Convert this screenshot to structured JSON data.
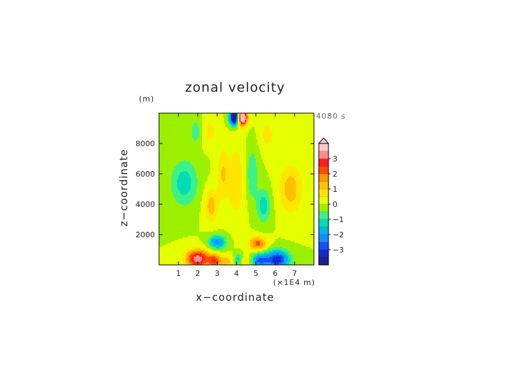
{
  "chart_data": {
    "type": "heatmap",
    "title": "zonal velocity",
    "xlabel": "x−coordinate",
    "ylabel": "z−coordinate",
    "x_unit": "(×1E4 m)",
    "y_unit": "(m)",
    "time_label": "4080 s",
    "xlim": [
      0,
      8
    ],
    "ylim": [
      0,
      10000
    ],
    "x_ticks": [
      "1",
      "2",
      "3",
      "4",
      "5",
      "6",
      "7"
    ],
    "y_ticks": [
      "2000",
      "4000",
      "6000",
      "8000"
    ],
    "colorbar": {
      "ticks": [
        "3",
        "2",
        "1",
        "0",
        "−1",
        "−2",
        "−3"
      ],
      "levels": [
        -3.5,
        -3,
        -2.5,
        -2,
        -1.5,
        -1,
        -0.5,
        0,
        0.5,
        1,
        1.5,
        2,
        2.5,
        3,
        3.5
      ],
      "colors": [
        "#1e1e8c",
        "#0f2dc8",
        "#1450ff",
        "#1e8cff",
        "#00b4f0",
        "#00dcb4",
        "#3cf08c",
        "#9bf000",
        "#e6ff00",
        "#ffe600",
        "#ffbe00",
        "#ff9600",
        "#ff4b00",
        "#ff1e1e",
        "#ff8c8c",
        "#ffc8c8"
      ],
      "extend": "max"
    },
    "features": [
      {
        "x": 3.9,
        "z": 9700,
        "amp": -5.0,
        "sx": 0.25,
        "sz": 500
      },
      {
        "x": 4.3,
        "z": 9700,
        "amp": 5.0,
        "sx": 0.25,
        "sz": 500
      },
      {
        "x": 2.0,
        "z": 400,
        "amp": 3.4,
        "sx": 0.6,
        "sz": 600
      },
      {
        "x": 2.9,
        "z": 250,
        "amp": 2.3,
        "sx": 0.35,
        "sz": 450
      },
      {
        "x": 5.2,
        "z": 300,
        "amp": -2.5,
        "sx": 0.4,
        "sz": 450
      },
      {
        "x": 6.1,
        "z": 350,
        "amp": -3.4,
        "sx": 0.6,
        "sz": 600
      },
      {
        "x": 3.0,
        "z": 1500,
        "amp": -2.2,
        "sx": 0.45,
        "sz": 450
      },
      {
        "x": 5.1,
        "z": 1400,
        "amp": 2.2,
        "sx": 0.45,
        "sz": 450
      },
      {
        "x": 3.5,
        "z": 250,
        "amp": 1.3,
        "sx": 0.25,
        "sz": 350
      },
      {
        "x": 4.1,
        "z": 400,
        "amp": -1.2,
        "sx": 0.2,
        "sz": 400
      },
      {
        "x": 4.5,
        "z": 300,
        "amp": 1.0,
        "sx": 0.2,
        "sz": 300
      },
      {
        "x": 1.3,
        "z": 5400,
        "amp": -1.3,
        "sx": 0.7,
        "sz": 1500
      },
      {
        "x": 6.8,
        "z": 5000,
        "amp": 1.3,
        "sx": 0.6,
        "sz": 1600
      },
      {
        "x": 2.7,
        "z": 3900,
        "amp": 1.3,
        "sx": 0.35,
        "sz": 1100
      },
      {
        "x": 5.4,
        "z": 3900,
        "amp": -1.3,
        "sx": 0.35,
        "sz": 1100
      },
      {
        "x": 3.3,
        "z": 6000,
        "amp": 1.0,
        "sx": 0.3,
        "sz": 1700
      },
      {
        "x": 4.8,
        "z": 6000,
        "amp": -1.0,
        "sx": 0.3,
        "sz": 1700
      },
      {
        "x": 4.0,
        "z": 5500,
        "amp": 0.9,
        "sx": 0.45,
        "sz": 2500
      },
      {
        "x": 2.6,
        "z": 8800,
        "amp": 0.7,
        "sx": 0.4,
        "sz": 900
      },
      {
        "x": 5.6,
        "z": 8600,
        "amp": 0.7,
        "sx": 0.4,
        "sz": 1000
      },
      {
        "x": 1.9,
        "z": 8800,
        "amp": -0.8,
        "sx": 0.3,
        "sz": 900
      }
    ]
  }
}
